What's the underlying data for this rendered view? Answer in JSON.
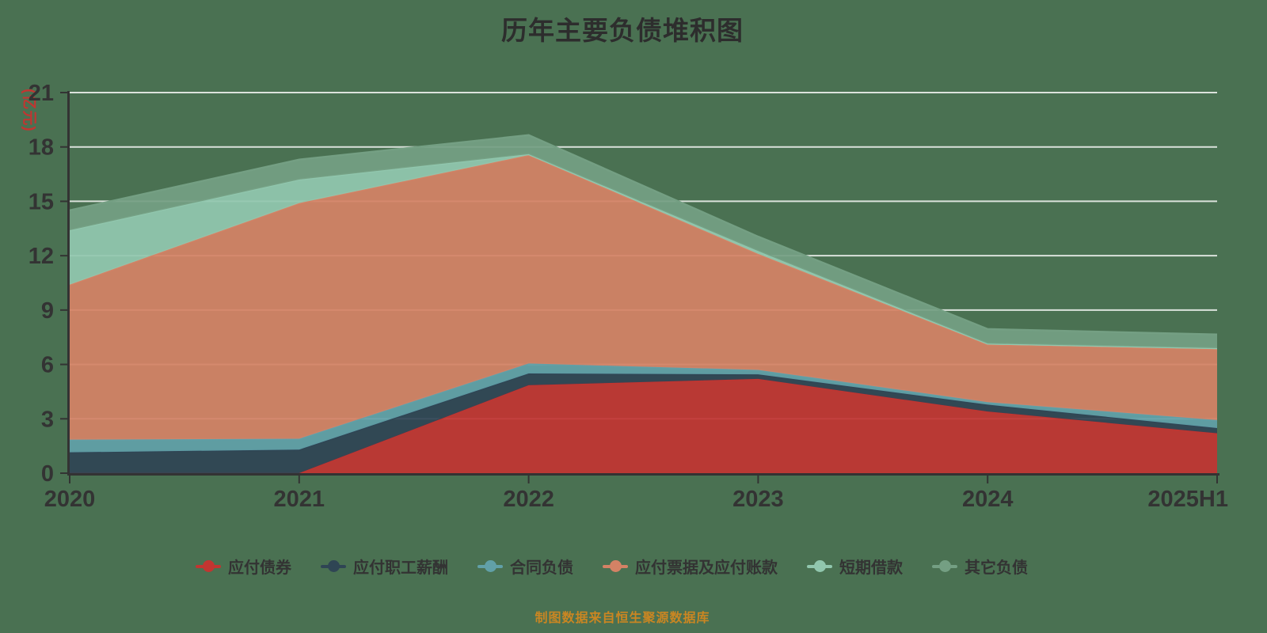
{
  "title": "历年主要负债堆积图",
  "y_axis_unit": "(亿元)",
  "footer": "制图数据来自恒生聚源数据库",
  "colors": {
    "background": "#4a7152",
    "title": "#2d2d2d",
    "axis": "#333333",
    "tick_label": "#333333",
    "grid": "rgba(255,255,255,0.8)",
    "unit_label": "#c23531",
    "footer": "#ca8622"
  },
  "chart_data": {
    "type": "area",
    "stacked": true,
    "grid": true,
    "legend_position": "bottom",
    "legend_marker": "line-dot",
    "title": "历年主要负债堆积图",
    "xlabel": "",
    "ylabel": "(亿元)",
    "ylim": [
      0,
      21
    ],
    "y_ticks": [
      0,
      3,
      6,
      9,
      12,
      15,
      18,
      21
    ],
    "categories": [
      "2020",
      "2021",
      "2022",
      "2023",
      "2024",
      "2025H1"
    ],
    "series": [
      {
        "name": "应付债券",
        "color": "#c23531",
        "values": [
          0,
          0,
          4.85,
          5.2,
          3.4,
          2.2
        ]
      },
      {
        "name": "应付职工薪酬",
        "color": "#2f4554",
        "values": [
          1.15,
          1.3,
          0.65,
          0.25,
          0.38,
          0.29
        ]
      },
      {
        "name": "合同负债",
        "color": "#61a0a8",
        "values": [
          0.7,
          0.6,
          0.55,
          0.25,
          0.14,
          0.44
        ]
      },
      {
        "name": "应付票据及应付账款",
        "color": "#d48265",
        "values": [
          8.55,
          13.0,
          11.5,
          6.4,
          3.18,
          3.92
        ]
      },
      {
        "name": "短期借款",
        "color": "#91c7ae",
        "values": [
          3.0,
          1.3,
          0.05,
          0.15,
          0.05,
          0.05
        ]
      },
      {
        "name": "其它负债",
        "color": "#749f83",
        "values": [
          1.1,
          1.1,
          1.05,
          0.8,
          0.8,
          0.75
        ]
      }
    ]
  }
}
